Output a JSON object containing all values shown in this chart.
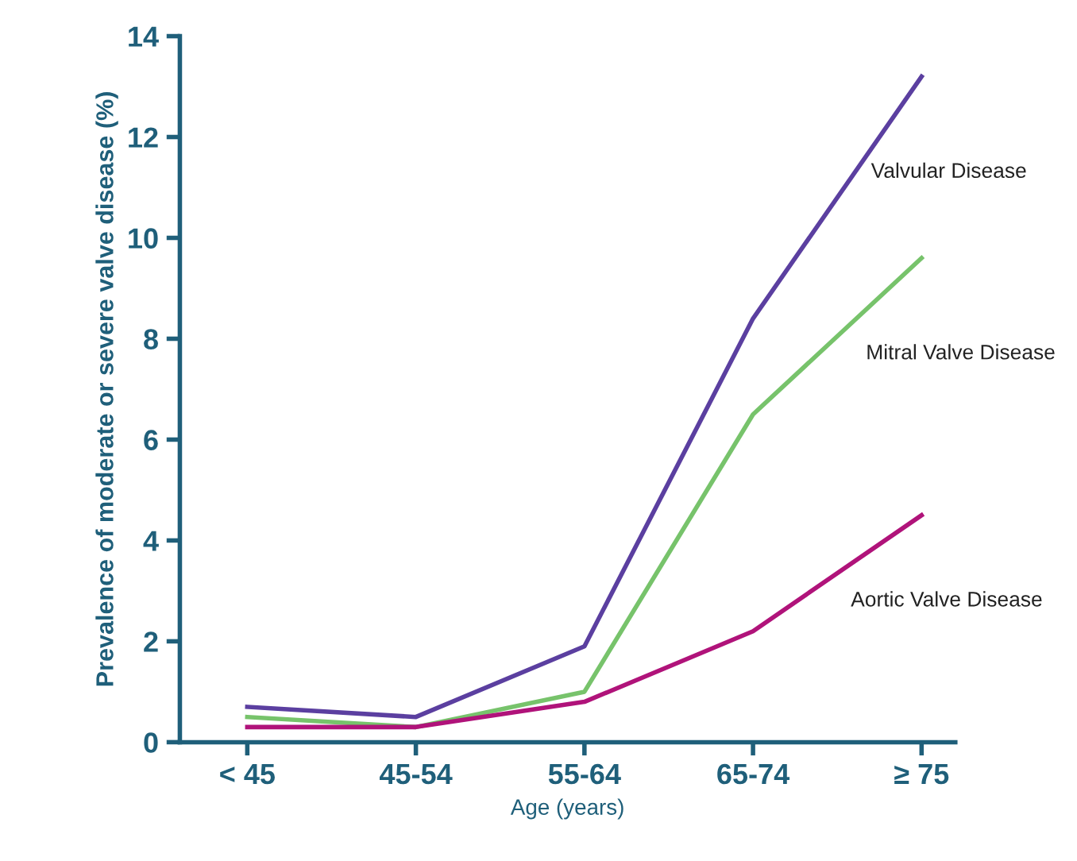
{
  "chart_data": {
    "type": "line",
    "xlabel": "Age (years)",
    "ylabel": "Prevalence of moderate or severe valve disease (%)",
    "categories": [
      "< 45",
      "45-54",
      "55-64",
      "65-74",
      "≥ 75"
    ],
    "series": [
      {
        "name": "Valvular Disease",
        "color": "#5b3fa0",
        "values": [
          0.7,
          0.5,
          1.9,
          8.4,
          13.2
        ]
      },
      {
        "name": "Mitral Valve Disease",
        "color": "#77c36b",
        "values": [
          0.5,
          0.3,
          1.0,
          6.5,
          9.6
        ]
      },
      {
        "name": "Aortic Valve Disease",
        "color": "#b0137a",
        "values": [
          0.3,
          0.3,
          0.8,
          2.2,
          4.5
        ]
      }
    ],
    "ylim": [
      0,
      14
    ],
    "yticks": [
      0,
      2,
      4,
      6,
      8,
      10,
      12,
      14
    ],
    "grid": false,
    "legend": false,
    "marker": "none",
    "line_style": "solid"
  }
}
